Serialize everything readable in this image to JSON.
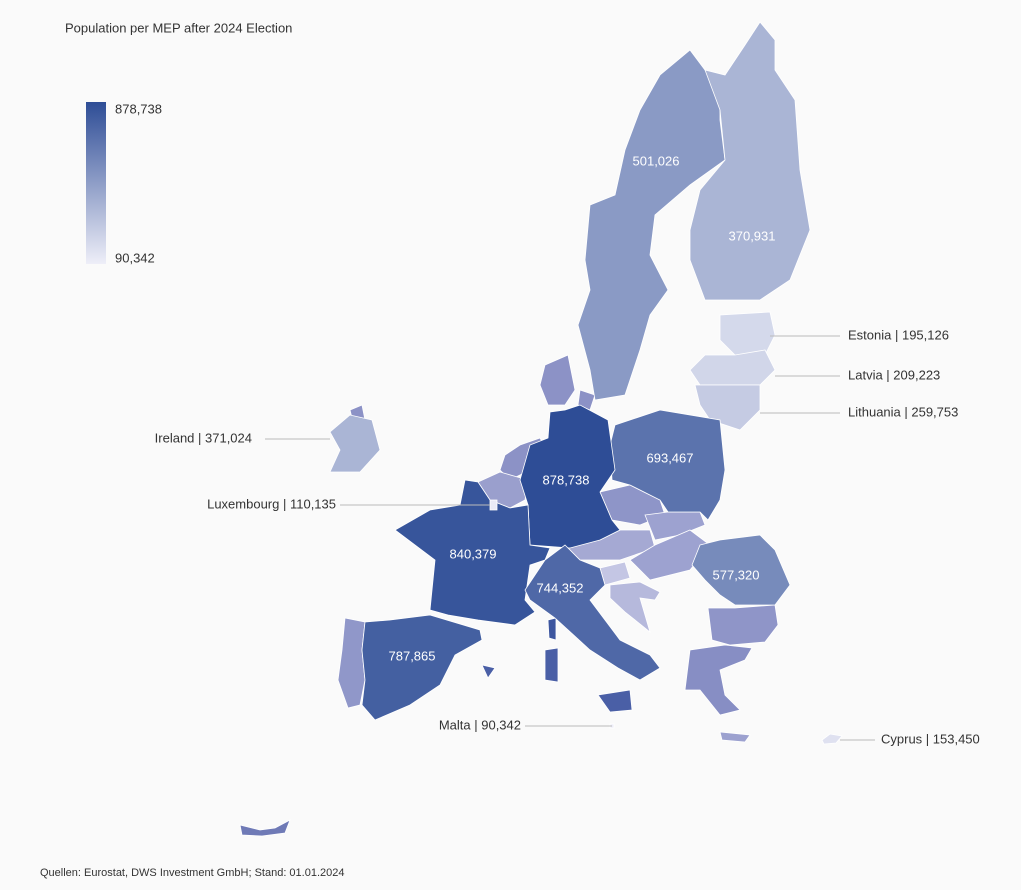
{
  "title": "Population per MEP after 2024 Election",
  "legend": {
    "max": {
      "value": 878738,
      "label": "878,738",
      "color": "#2e4d96"
    },
    "min": {
      "value": 90342,
      "label": "90,342",
      "color": "#eeeef8"
    }
  },
  "countries": [
    {
      "value": 501026,
      "label": "501,026"
    },
    {
      "value": 370931,
      "label": "370,931"
    },
    {
      "value": 195126,
      "label": "Estonia | 195,126"
    },
    {
      "value": 209223,
      "label": "Latvia | 209,223"
    },
    {
      "value": 259753,
      "label": "Lithuania | 259,753"
    },
    {
      "value": 693467,
      "label": "693,467"
    },
    {
      "value": 878738,
      "label": "878,738"
    },
    {
      "value": 840379,
      "label": "840,379"
    },
    {
      "value": 787865,
      "label": "787,865"
    },
    {
      "value": 744352,
      "label": "744,352"
    },
    {
      "value": 577320,
      "label": "577,320"
    },
    {
      "value": 371024,
      "label": "Ireland | 371,024"
    },
    {
      "value": 110135,
      "label": "Luxembourg | 110,135"
    },
    {
      "value": 90342,
      "label": "Malta | 90,342"
    },
    {
      "value": 153450,
      "label": "Cyprus | 153,450"
    }
  ],
  "source": "Quellen: Eurostat, DWS Investment GmbH; Stand: 01.01.2024"
}
